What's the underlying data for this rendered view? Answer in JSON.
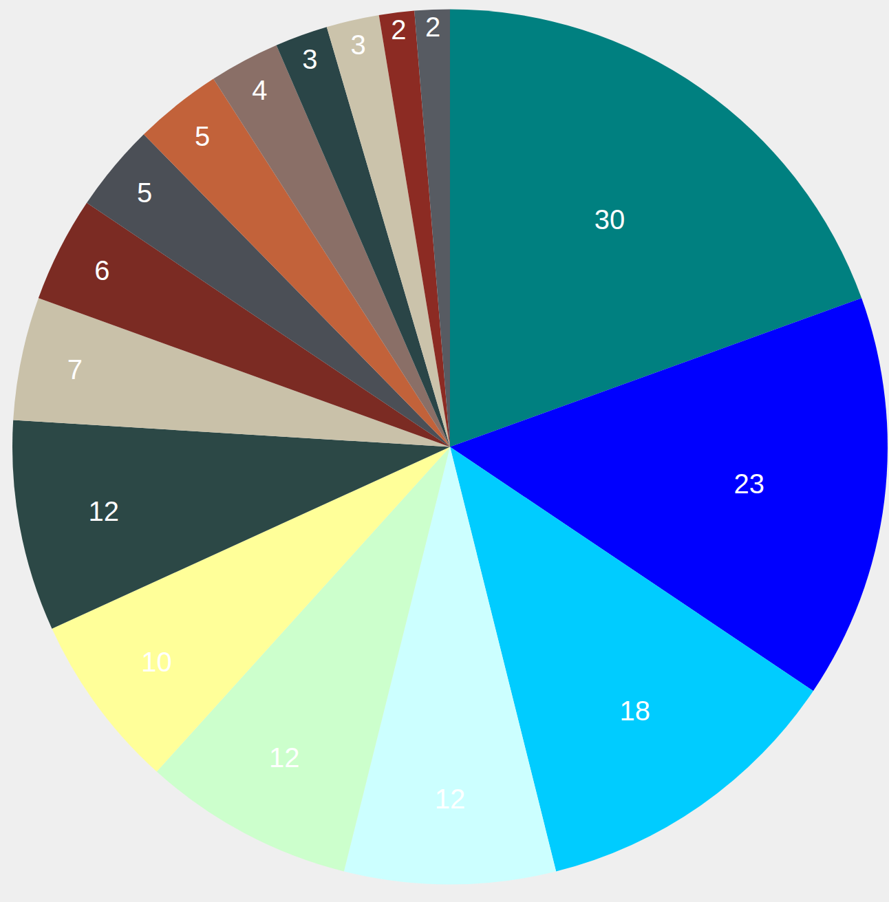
{
  "chart_data": {
    "type": "pie",
    "values": [
      30,
      23,
      18,
      12,
      12,
      10,
      12,
      7,
      6,
      5,
      5,
      4,
      3,
      3,
      2,
      2
    ],
    "colors": [
      "#008080",
      "#0000ff",
      "#00ccff",
      "#ccffff",
      "#ccffcc",
      "#ffff99",
      "#2c4846",
      "#c9c1a9",
      "#7b2b23",
      "#4b4f56",
      "#c2623a",
      "#8a6f67",
      "#2a4547",
      "#cbc3ab",
      "#8c2b23",
      "#575b62"
    ],
    "data_labels": true
  }
}
